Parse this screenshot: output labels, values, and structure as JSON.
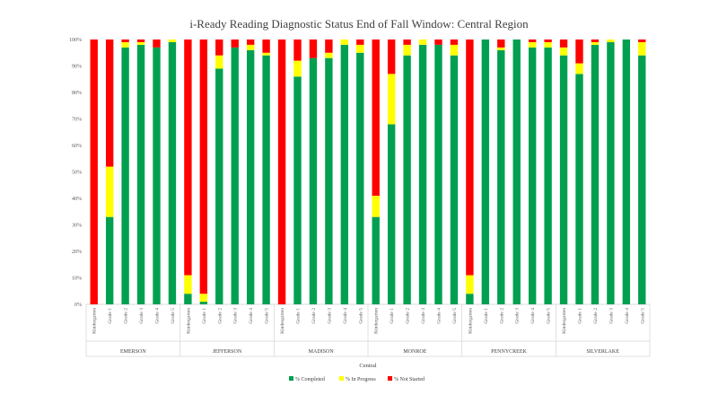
{
  "chart_data": {
    "type": "bar",
    "stacked": true,
    "title": "i-Ready Reading Diagnostic Status End of Fall Window: Central Region",
    "xlabel": "Central",
    "ylabel": "",
    "ylim": [
      0,
      100
    ],
    "yticks": [
      "0%",
      "10%",
      "20%",
      "30%",
      "40%",
      "50%",
      "60%",
      "70%",
      "80%",
      "90%",
      "100%"
    ],
    "grid": false,
    "legend_position": "bottom",
    "colors": {
      "completed": "#00a050",
      "in_progress": "#ffff00",
      "not_started": "#ff0000"
    },
    "groups": [
      {
        "name": "EMERSON",
        "categories": [
          "Kindergarten",
          "Grade 1",
          "Grade 2",
          "Grade 3",
          "Grade 4",
          "Grade 5"
        ]
      },
      {
        "name": "JEFFERSON",
        "categories": [
          "Kindergarten",
          "Grade 1",
          "Grade 2",
          "Grade 3",
          "Grade 4",
          "Grade 5"
        ]
      },
      {
        "name": "MADISON",
        "categories": [
          "Kindergarten",
          "Grade 1",
          "Grade 2",
          "Grade 3",
          "Grade 4",
          "Grade 5"
        ]
      },
      {
        "name": "MONROE",
        "categories": [
          "Kindergarten",
          "Grade 1",
          "Grade 2",
          "Grade 3",
          "Grade 4",
          "Grade 5"
        ]
      },
      {
        "name": "PENNYCREEK",
        "categories": [
          "Kindergarten",
          "Grade 1",
          "Grade 2",
          "Grade 3",
          "Grade 4",
          "Grade 5"
        ]
      },
      {
        "name": "SILVERLAKE",
        "categories": [
          "Kindergarten",
          "Grade 1",
          "Grade 2",
          "Grade 3",
          "Grade 4",
          "Grade 5"
        ]
      }
    ],
    "series": [
      {
        "name": "% Completed",
        "values": [
          0,
          33,
          97,
          98,
          97,
          99,
          4,
          1,
          89,
          97,
          96,
          94,
          0,
          86,
          93,
          93,
          98,
          95,
          33,
          68,
          94,
          98,
          98,
          94,
          4,
          100,
          96,
          100,
          97,
          97,
          94,
          87,
          98,
          99,
          100,
          94
        ]
      },
      {
        "name": "% In Progress",
        "values": [
          0,
          19,
          2,
          1,
          0,
          1,
          7,
          3,
          5,
          0,
          2,
          1,
          0,
          6,
          0,
          2,
          2,
          3,
          8,
          19,
          4,
          2,
          0,
          4,
          7,
          0,
          1,
          0,
          2,
          2,
          3,
          4,
          1,
          1,
          0,
          5
        ]
      },
      {
        "name": "% Not Started",
        "values": [
          100,
          48,
          1,
          1,
          3,
          0,
          89,
          96,
          6,
          3,
          2,
          5,
          100,
          8,
          7,
          5,
          0,
          2,
          59,
          13,
          2,
          0,
          2,
          2,
          89,
          0,
          3,
          0,
          1,
          1,
          3,
          9,
          1,
          0,
          0,
          1
        ]
      }
    ]
  }
}
